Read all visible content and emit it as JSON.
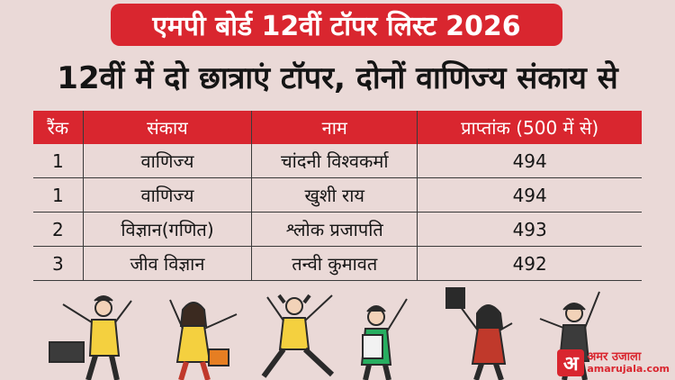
{
  "banner": {
    "title": "एमपी बोर्ड 12वीं टॉपर लिस्ट 2026"
  },
  "headline": "12वीं में दो छात्राएं टॉपर, दोनों वाणिज्य संकाय से",
  "table": {
    "headers": [
      "रैंक",
      "संकाय",
      "नाम",
      "प्राप्तांक (500 में से)"
    ],
    "rows": [
      [
        "1",
        "वाणिज्य",
        "चांदनी विश्वकर्मा",
        "494"
      ],
      [
        "1",
        "वाणिज्य",
        "खुशी  राय",
        "494"
      ],
      [
        "2",
        "विज्ञान(गणित)",
        "श्लोक प्रजापति",
        "493"
      ],
      [
        "3",
        "जीव विज्ञान",
        "तन्वी कुमावत",
        "492"
      ]
    ]
  },
  "logo": {
    "mark": "अ",
    "name": "अमर उजाला",
    "url": "amarujala.com"
  },
  "colors": {
    "brand_red": "#d9262f",
    "background": "#ead9d7"
  },
  "illustration": "cheering-students-icon"
}
